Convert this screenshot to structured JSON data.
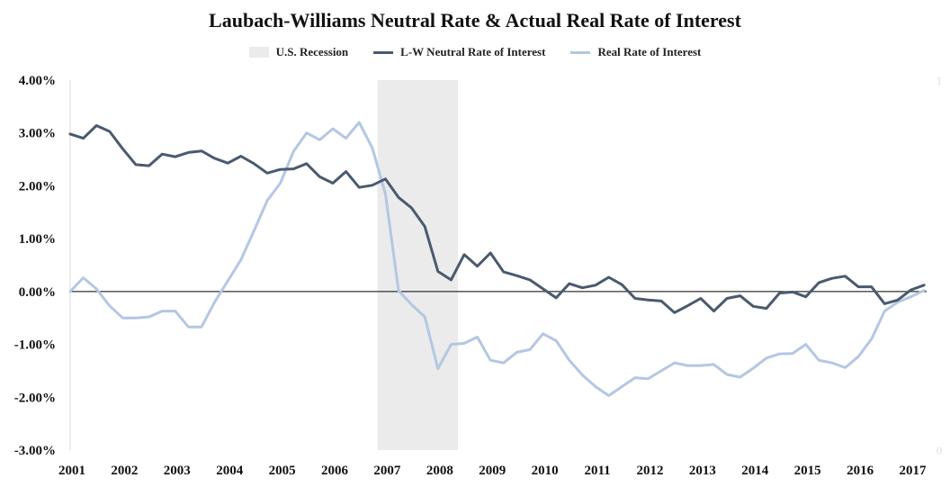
{
  "chart_data": {
    "type": "line",
    "title": "Laubach-Williams Neutral Rate & Actual Real Rate of  Interest",
    "legend": [
      {
        "name": "U.S. Recession",
        "kind": "band",
        "color": "#ebebeb"
      },
      {
        "name": "L-W Neutral Rate of Interest",
        "kind": "line",
        "color": "#4a5a6e"
      },
      {
        "name": "Real Rate of Interest",
        "kind": "line",
        "color": "#b4c7e3"
      }
    ],
    "y_ticks": [
      "4.00%",
      "3.00%",
      "2.00%",
      "1.00%",
      "0.00%",
      "-1.00%",
      "-2.00%",
      "-3.00%"
    ],
    "ylim": [
      -3,
      4
    ],
    "x_ticks": [
      "2001",
      "2002",
      "2003",
      "2004",
      "2005",
      "2006",
      "2007",
      "2008",
      "2009",
      "2010",
      "2011",
      "2012",
      "2013",
      "2014",
      "2015",
      "2016",
      "2017"
    ],
    "xlim": [
      2001,
      2017.3
    ],
    "secondary_y_ticks": [
      "1",
      "0"
    ],
    "recession": {
      "start": 2006.85,
      "end": 2008.38
    },
    "series": [
      {
        "name": "L-W Neutral Rate of Interest",
        "color": "#4a5a6e",
        "x": [
          2001.0,
          2001.25,
          2001.5,
          2001.75,
          2002.0,
          2002.25,
          2002.5,
          2002.75,
          2003.0,
          2003.25,
          2003.5,
          2003.75,
          2004.0,
          2004.25,
          2004.5,
          2004.75,
          2005.0,
          2005.25,
          2005.5,
          2005.75,
          2006.0,
          2006.25,
          2006.5,
          2006.75,
          2007.0,
          2007.25,
          2007.5,
          2007.75,
          2008.0,
          2008.25,
          2008.5,
          2008.75,
          2009.0,
          2009.25,
          2009.5,
          2009.75,
          2010.0,
          2010.25,
          2010.5,
          2010.75,
          2011.0,
          2011.25,
          2011.5,
          2011.75,
          2012.0,
          2012.25,
          2012.5,
          2012.75,
          2013.0,
          2013.25,
          2013.5,
          2013.75,
          2014.0,
          2014.25,
          2014.5,
          2014.75,
          2015.0,
          2015.25,
          2015.5,
          2015.75,
          2016.0,
          2016.25,
          2016.5,
          2016.75,
          2017.0,
          2017.25
        ],
        "values": [
          2.98,
          2.9,
          3.14,
          3.03,
          2.7,
          2.4,
          2.38,
          2.6,
          2.55,
          2.63,
          2.66,
          2.52,
          2.43,
          2.56,
          2.42,
          2.24,
          2.31,
          2.32,
          2.42,
          2.17,
          2.05,
          2.27,
          1.97,
          2.01,
          2.13,
          1.78,
          1.58,
          1.23,
          0.38,
          0.22,
          0.7,
          0.48,
          0.73,
          0.37,
          0.3,
          0.22,
          0.05,
          -0.12,
          0.15,
          0.07,
          0.12,
          0.27,
          0.13,
          -0.13,
          -0.16,
          -0.18,
          -0.4,
          -0.27,
          -0.13,
          -0.37,
          -0.13,
          -0.08,
          -0.28,
          -0.32,
          -0.03,
          -0.01,
          -0.1,
          0.17,
          0.25,
          0.29,
          0.09,
          0.09,
          -0.23,
          -0.16,
          0.03,
          0.12
        ]
      },
      {
        "name": "Real Rate of Interest",
        "color": "#b4c7e3",
        "x": [
          2001.0,
          2001.25,
          2001.5,
          2001.75,
          2002.0,
          2002.25,
          2002.5,
          2002.75,
          2003.0,
          2003.25,
          2003.5,
          2003.75,
          2004.0,
          2004.25,
          2004.5,
          2004.75,
          2005.0,
          2005.25,
          2005.5,
          2005.75,
          2006.0,
          2006.25,
          2006.5,
          2006.75,
          2007.0,
          2007.25,
          2007.5,
          2007.75,
          2008.0,
          2008.25,
          2008.5,
          2008.75,
          2009.0,
          2009.25,
          2009.5,
          2009.75,
          2010.0,
          2010.25,
          2010.5,
          2010.75,
          2011.0,
          2011.25,
          2011.5,
          2011.75,
          2012.0,
          2012.25,
          2012.5,
          2012.75,
          2013.0,
          2013.25,
          2013.5,
          2013.75,
          2014.0,
          2014.25,
          2014.5,
          2014.75,
          2015.0,
          2015.25,
          2015.5,
          2015.75,
          2016.0,
          2016.25,
          2016.5,
          2016.75,
          2017.0,
          2017.25
        ],
        "values": [
          0.0,
          0.26,
          0.05,
          -0.27,
          -0.5,
          -0.5,
          -0.48,
          -0.37,
          -0.37,
          -0.67,
          -0.67,
          -0.2,
          0.2,
          0.6,
          1.15,
          1.72,
          2.05,
          2.65,
          3.0,
          2.87,
          3.08,
          2.9,
          3.2,
          2.72,
          1.85,
          0.02,
          -0.25,
          -0.48,
          -1.46,
          -1.0,
          -0.98,
          -0.86,
          -1.3,
          -1.35,
          -1.15,
          -1.1,
          -0.8,
          -0.93,
          -1.3,
          -1.58,
          -1.8,
          -1.97,
          -1.8,
          -1.63,
          -1.65,
          -1.5,
          -1.35,
          -1.4,
          -1.4,
          -1.38,
          -1.57,
          -1.62,
          -1.45,
          -1.26,
          -1.18,
          -1.17,
          -1.0,
          -1.3,
          -1.35,
          -1.44,
          -1.23,
          -0.9,
          -0.37,
          -0.2,
          -0.1,
          0.02
        ]
      }
    ]
  }
}
